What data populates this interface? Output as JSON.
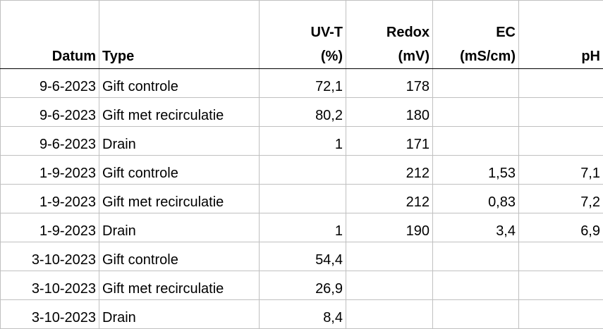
{
  "headers": {
    "datum": "Datum",
    "type": "Type",
    "uvt_line1": "UV-T",
    "uvt_line2": "(%)",
    "redox_line1": "Redox",
    "redox_line2": "(mV)",
    "ec_line1": "EC",
    "ec_line2": "(mS/cm)",
    "ph": "pH"
  },
  "rows": [
    {
      "datum": "9-6-2023",
      "type": "Gift controle",
      "uvt": "72,1",
      "redox": "178",
      "ec": "",
      "ph": ""
    },
    {
      "datum": "9-6-2023",
      "type": "Gift met recirculatie",
      "uvt": "80,2",
      "redox": "180",
      "ec": "",
      "ph": ""
    },
    {
      "datum": "9-6-2023",
      "type": "Drain",
      "uvt": "1",
      "redox": "171",
      "ec": "",
      "ph": ""
    },
    {
      "datum": "1-9-2023",
      "type": "Gift controle",
      "uvt": "",
      "redox": "212",
      "ec": "1,53",
      "ph": "7,1"
    },
    {
      "datum": "1-9-2023",
      "type": "Gift met recirculatie",
      "uvt": "",
      "redox": "212",
      "ec": "0,83",
      "ph": "7,2"
    },
    {
      "datum": "1-9-2023",
      "type": "Drain",
      "uvt": "1",
      "redox": "190",
      "ec": "3,4",
      "ph": "6,9"
    },
    {
      "datum": "3-10-2023",
      "type": "Gift controle",
      "uvt": "54,4",
      "redox": "",
      "ec": "",
      "ph": ""
    },
    {
      "datum": "3-10-2023",
      "type": "Gift met recirculatie",
      "uvt": "26,9",
      "redox": "",
      "ec": "",
      "ph": ""
    },
    {
      "datum": "3-10-2023",
      "type": "Drain",
      "uvt": "8,4",
      "redox": "",
      "ec": "",
      "ph": ""
    }
  ]
}
